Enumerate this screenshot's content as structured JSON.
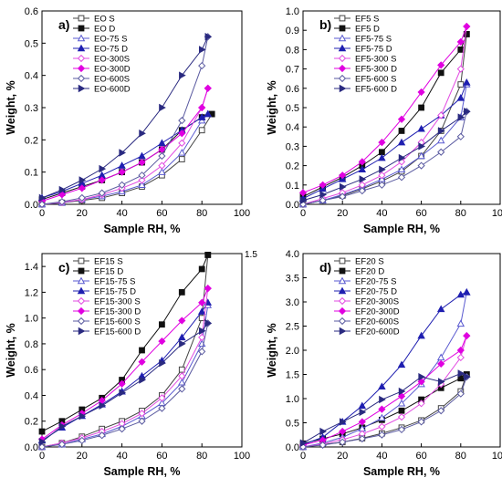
{
  "chart_data": [
    {
      "type": "line",
      "panel_label": "a)",
      "xlabel": "Sample RH, %",
      "ylabel": "Weight, %",
      "xlim": [
        0,
        100
      ],
      "ylim": [
        0,
        0.6
      ],
      "xticks": [
        0,
        20,
        40,
        60,
        80,
        100
      ],
      "yticks": [
        0.0,
        0.1,
        0.2,
        0.3,
        0.4,
        0.5,
        0.6
      ],
      "ytick_labels": [
        "0.0",
        "0.1",
        "0.2",
        "0.3",
        "0.4",
        "0.5",
        "0.6"
      ],
      "legend_position": "top-left",
      "series": [
        {
          "name": "EO S",
          "color": "#444444",
          "marker": "square",
          "filled": false,
          "x": [
            0,
            10,
            20,
            30,
            40,
            50,
            60,
            70,
            80,
            85
          ],
          "y": [
            0.0,
            0.005,
            0.012,
            0.02,
            0.035,
            0.055,
            0.09,
            0.14,
            0.23,
            0.28
          ]
        },
        {
          "name": "EO D",
          "color": "#111111",
          "marker": "square",
          "filled": true,
          "x": [
            85,
            80,
            70,
            60,
            50,
            40,
            30,
            20,
            10,
            0
          ],
          "y": [
            0.28,
            0.27,
            0.23,
            0.17,
            0.13,
            0.1,
            0.075,
            0.055,
            0.035,
            0.015
          ]
        },
        {
          "name": "EO-75 S",
          "color": "#5a5ad0",
          "marker": "triangle",
          "filled": false,
          "x": [
            0,
            10,
            20,
            30,
            40,
            50,
            60,
            70,
            80,
            83
          ],
          "y": [
            0.0,
            0.005,
            0.015,
            0.025,
            0.04,
            0.06,
            0.1,
            0.16,
            0.26,
            0.28
          ]
        },
        {
          "name": "EO-75 D",
          "color": "#1f1fb0",
          "marker": "triangle",
          "filled": true,
          "x": [
            83,
            80,
            70,
            60,
            50,
            40,
            30,
            20,
            10,
            0
          ],
          "y": [
            0.28,
            0.27,
            0.23,
            0.19,
            0.15,
            0.12,
            0.09,
            0.065,
            0.04,
            0.02
          ]
        },
        {
          "name": "EO-300S",
          "color": "#e24be2",
          "marker": "diamond",
          "filled": false,
          "x": [
            0,
            10,
            20,
            30,
            40,
            50,
            60,
            70,
            80,
            83
          ],
          "y": [
            0.0,
            0.006,
            0.015,
            0.03,
            0.05,
            0.075,
            0.12,
            0.19,
            0.3,
            0.36
          ]
        },
        {
          "name": "EO-300D",
          "color": "#e000e0",
          "marker": "diamond",
          "filled": true,
          "x": [
            83,
            80,
            70,
            60,
            50,
            40,
            30,
            20,
            10,
            0
          ],
          "y": [
            0.36,
            0.3,
            0.22,
            0.17,
            0.13,
            0.1,
            0.075,
            0.05,
            0.03,
            0.01
          ]
        },
        {
          "name": "EO-600S",
          "color": "#5a5aa0",
          "marker": "diamond",
          "filled": false,
          "x": [
            0,
            10,
            20,
            30,
            40,
            50,
            60,
            70,
            80,
            83
          ],
          "y": [
            0.0,
            0.008,
            0.02,
            0.035,
            0.06,
            0.09,
            0.15,
            0.26,
            0.43,
            0.52
          ]
        },
        {
          "name": "EO-600D",
          "color": "#2a2a80",
          "marker": "triangle-right",
          "filled": true,
          "x": [
            83,
            80,
            70,
            60,
            50,
            40,
            30,
            20,
            10,
            0
          ],
          "y": [
            0.52,
            0.48,
            0.4,
            0.3,
            0.22,
            0.16,
            0.11,
            0.075,
            0.045,
            0.02
          ]
        }
      ]
    },
    {
      "type": "line",
      "panel_label": "b)",
      "xlabel": "Sample RH, %",
      "ylabel": "Weight, %",
      "xlim": [
        0,
        100
      ],
      "ylim": [
        0,
        1.0
      ],
      "xticks": [
        0,
        20,
        40,
        60,
        80,
        100
      ],
      "yticks": [
        0.0,
        0.1,
        0.2,
        0.3,
        0.4,
        0.5,
        0.6,
        0.7,
        0.8,
        0.9,
        1.0
      ],
      "ytick_labels": [
        "0.0",
        "0.1",
        "0.2",
        "0.3",
        "0.4",
        "0.5",
        "0.6",
        "0.7",
        "0.8",
        "0.9",
        "1.0"
      ],
      "legend_position": "top-left",
      "series": [
        {
          "name": "EF5 S",
          "color": "#444444",
          "marker": "square",
          "filled": false,
          "x": [
            0,
            10,
            20,
            30,
            40,
            50,
            60,
            70,
            80,
            83
          ],
          "y": [
            0.0,
            0.02,
            0.045,
            0.08,
            0.12,
            0.17,
            0.25,
            0.38,
            0.62,
            0.88
          ]
        },
        {
          "name": "EF5 D",
          "color": "#111111",
          "marker": "square",
          "filled": true,
          "x": [
            83,
            80,
            70,
            60,
            50,
            40,
            30,
            20,
            10,
            0
          ],
          "y": [
            0.88,
            0.8,
            0.68,
            0.5,
            0.38,
            0.27,
            0.2,
            0.14,
            0.09,
            0.04
          ]
        },
        {
          "name": "EF5-75 S",
          "color": "#5a5ad0",
          "marker": "triangle",
          "filled": false,
          "x": [
            0,
            10,
            20,
            30,
            40,
            50,
            60,
            70,
            80,
            83
          ],
          "y": [
            0.0,
            0.02,
            0.05,
            0.085,
            0.13,
            0.18,
            0.25,
            0.33,
            0.45,
            0.62
          ]
        },
        {
          "name": "EF5-75 D",
          "color": "#1f1fb0",
          "marker": "triangle",
          "filled": true,
          "x": [
            83,
            80,
            70,
            60,
            50,
            40,
            30,
            20,
            10,
            0
          ],
          "y": [
            0.63,
            0.55,
            0.46,
            0.39,
            0.32,
            0.24,
            0.18,
            0.13,
            0.08,
            0.03
          ]
        },
        {
          "name": "EF5-300 S",
          "color": "#e24be2",
          "marker": "diamond",
          "filled": false,
          "x": [
            0,
            10,
            20,
            30,
            40,
            50,
            60,
            70,
            80,
            83
          ],
          "y": [
            0.0,
            0.03,
            0.06,
            0.1,
            0.15,
            0.22,
            0.32,
            0.46,
            0.7,
            0.92
          ]
        },
        {
          "name": "EF5-300 D",
          "color": "#e000e0",
          "marker": "diamond",
          "filled": true,
          "x": [
            83,
            80,
            70,
            60,
            50,
            40,
            30,
            20,
            10,
            0
          ],
          "y": [
            0.92,
            0.84,
            0.72,
            0.58,
            0.44,
            0.32,
            0.22,
            0.15,
            0.1,
            0.06
          ]
        },
        {
          "name": "EF5-600 S",
          "color": "#5a5aa0",
          "marker": "diamond",
          "filled": false,
          "x": [
            0,
            10,
            20,
            30,
            40,
            50,
            60,
            70,
            80,
            83
          ],
          "y": [
            0.0,
            0.02,
            0.04,
            0.07,
            0.1,
            0.14,
            0.2,
            0.27,
            0.35,
            0.48
          ]
        },
        {
          "name": "EF5-600 D",
          "color": "#2a2a80",
          "marker": "triangle-right",
          "filled": true,
          "x": [
            83,
            80,
            70,
            60,
            50,
            40,
            30,
            20,
            10,
            0
          ],
          "y": [
            0.48,
            0.45,
            0.38,
            0.3,
            0.24,
            0.18,
            0.13,
            0.09,
            0.05,
            0.02
          ]
        }
      ]
    },
    {
      "type": "line",
      "panel_label": "c)",
      "xlabel": "Sample RH, %",
      "ylabel": "Weight, %",
      "xlim": [
        0,
        100
      ],
      "ylim": [
        0,
        1.5
      ],
      "xticks": [
        0,
        20,
        40,
        60,
        80,
        100
      ],
      "yticks": [
        0.0,
        0.2,
        0.4,
        0.6,
        0.8,
        1.0,
        1.2,
        1.4
      ],
      "ytick_labels": [
        "0.0",
        "0.2",
        "0.4",
        "0.6",
        "0.8",
        "1.0",
        "1.2",
        "1.4"
      ],
      "extra_ytick_labels": [
        {
          "value": 1.5,
          "label": "1.5"
        }
      ],
      "legend_position": "top-left",
      "series": [
        {
          "name": "EF15 S",
          "color": "#444444",
          "marker": "square",
          "filled": false,
          "x": [
            0,
            10,
            20,
            30,
            40,
            50,
            60,
            70,
            80,
            83
          ],
          "y": [
            0.0,
            0.03,
            0.08,
            0.14,
            0.2,
            0.28,
            0.4,
            0.6,
            1.0,
            1.49
          ]
        },
        {
          "name": "EF15 D",
          "color": "#111111",
          "marker": "square",
          "filled": true,
          "x": [
            83,
            80,
            70,
            60,
            50,
            40,
            30,
            20,
            10,
            0
          ],
          "y": [
            1.49,
            1.38,
            1.2,
            0.95,
            0.75,
            0.52,
            0.38,
            0.29,
            0.2,
            0.12
          ]
        },
        {
          "name": "EF15-75 S",
          "color": "#5a5ad0",
          "marker": "triangle",
          "filled": false,
          "x": [
            0,
            10,
            20,
            30,
            40,
            50,
            60,
            70,
            80,
            83
          ],
          "y": [
            0.0,
            0.02,
            0.06,
            0.1,
            0.16,
            0.24,
            0.34,
            0.5,
            0.8,
            1.1
          ]
        },
        {
          "name": "EF15-75 D",
          "color": "#1f1fb0",
          "marker": "triangle",
          "filled": true,
          "x": [
            83,
            80,
            70,
            60,
            50,
            40,
            30,
            20,
            10,
            0
          ],
          "y": [
            1.12,
            1.05,
            0.85,
            0.67,
            0.55,
            0.43,
            0.33,
            0.24,
            0.15,
            0.05
          ]
        },
        {
          "name": "EF15-300 S",
          "color": "#e24be2",
          "marker": "diamond",
          "filled": false,
          "x": [
            0,
            10,
            20,
            30,
            40,
            50,
            60,
            70,
            80,
            83
          ],
          "y": [
            0.0,
            0.03,
            0.07,
            0.12,
            0.18,
            0.26,
            0.38,
            0.55,
            0.85,
            1.23
          ]
        },
        {
          "name": "EF15-300 D",
          "color": "#e000e0",
          "marker": "diamond",
          "filled": true,
          "x": [
            83,
            80,
            70,
            60,
            50,
            40,
            30,
            20,
            10,
            0
          ],
          "y": [
            1.23,
            1.12,
            0.98,
            0.82,
            0.66,
            0.49,
            0.36,
            0.26,
            0.17,
            0.06
          ]
        },
        {
          "name": "EF15-600 S",
          "color": "#5a5aa0",
          "marker": "diamond",
          "filled": false,
          "x": [
            0,
            10,
            20,
            30,
            40,
            50,
            60,
            70,
            80,
            83
          ],
          "y": [
            0.0,
            0.02,
            0.05,
            0.09,
            0.14,
            0.2,
            0.3,
            0.45,
            0.74,
            0.96
          ]
        },
        {
          "name": "EF15-600 D",
          "color": "#2a2a80",
          "marker": "triangle-right",
          "filled": true,
          "x": [
            83,
            80,
            70,
            60,
            50,
            40,
            30,
            20,
            10,
            0
          ],
          "y": [
            0.96,
            0.9,
            0.8,
            0.65,
            0.52,
            0.42,
            0.32,
            0.24,
            0.16,
            0.04
          ]
        }
      ]
    },
    {
      "type": "line",
      "panel_label": "d)",
      "xlabel": "Sample RH, %",
      "ylabel": "Weight, %",
      "xlim": [
        0,
        100
      ],
      "ylim": [
        0,
        4.0
      ],
      "xticks": [
        0,
        20,
        40,
        60,
        80,
        100
      ],
      "yticks": [
        0.0,
        0.5,
        1.0,
        1.5,
        2.0,
        2.5,
        3.0,
        3.5,
        4.0
      ],
      "ytick_labels": [
        "0.0",
        "0.5",
        "1.0",
        "1.5",
        "2.0",
        "2.5",
        "3.0",
        "3.5",
        "4.0"
      ],
      "legend_position": "top-left",
      "series": [
        {
          "name": "EF20 S",
          "color": "#444444",
          "marker": "square",
          "filled": false,
          "x": [
            0,
            10,
            20,
            30,
            40,
            50,
            60,
            70,
            80,
            83
          ],
          "y": [
            0.0,
            0.05,
            0.1,
            0.18,
            0.28,
            0.4,
            0.55,
            0.8,
            1.15,
            1.5
          ]
        },
        {
          "name": "EF20 D",
          "color": "#111111",
          "marker": "square",
          "filled": true,
          "x": [
            83,
            80,
            70,
            60,
            50,
            40,
            30,
            20,
            10,
            0
          ],
          "y": [
            1.5,
            1.42,
            1.22,
            0.98,
            0.75,
            0.56,
            0.4,
            0.27,
            0.17,
            0.07
          ]
        },
        {
          "name": "EF20-75 S",
          "color": "#5a5ad0",
          "marker": "triangle",
          "filled": false,
          "x": [
            0,
            10,
            20,
            30,
            40,
            50,
            60,
            70,
            80,
            83
          ],
          "y": [
            0.0,
            0.08,
            0.2,
            0.38,
            0.6,
            0.9,
            1.3,
            1.85,
            2.55,
            3.2
          ]
        },
        {
          "name": "EF20-75 D",
          "color": "#1f1fb0",
          "marker": "triangle",
          "filled": true,
          "x": [
            83,
            80,
            70,
            60,
            50,
            40,
            30,
            20,
            10,
            0
          ],
          "y": [
            3.2,
            3.15,
            2.85,
            2.3,
            1.7,
            1.25,
            0.85,
            0.52,
            0.2,
            0.05
          ]
        },
        {
          "name": "EF20-300S",
          "color": "#e24be2",
          "marker": "diamond",
          "filled": false,
          "x": [
            0,
            10,
            20,
            30,
            40,
            50,
            60,
            70,
            80,
            83
          ],
          "y": [
            0.0,
            0.06,
            0.15,
            0.27,
            0.42,
            0.62,
            0.9,
            1.3,
            1.85,
            2.3
          ]
        },
        {
          "name": "EF20-300D",
          "color": "#e000e0",
          "marker": "diamond",
          "filled": true,
          "x": [
            83,
            80,
            70,
            60,
            50,
            40,
            30,
            20,
            10,
            0
          ],
          "y": [
            2.3,
            2.0,
            1.72,
            1.35,
            1.05,
            0.78,
            0.52,
            0.32,
            0.14,
            0.04
          ]
        },
        {
          "name": "EF20-600S",
          "color": "#5a5aa0",
          "marker": "diamond",
          "filled": false,
          "x": [
            0,
            10,
            20,
            30,
            40,
            50,
            60,
            70,
            80,
            83
          ],
          "y": [
            0.0,
            0.04,
            0.1,
            0.17,
            0.25,
            0.36,
            0.52,
            0.75,
            1.1,
            1.45
          ]
        },
        {
          "name": "EF20-600D",
          "color": "#2a2a80",
          "marker": "triangle-right",
          "filled": true,
          "x": [
            83,
            80,
            70,
            60,
            50,
            40,
            30,
            20,
            10,
            0
          ],
          "y": [
            1.45,
            1.52,
            1.35,
            1.45,
            1.15,
            0.98,
            0.72,
            0.52,
            0.32,
            0.08
          ]
        }
      ]
    }
  ]
}
